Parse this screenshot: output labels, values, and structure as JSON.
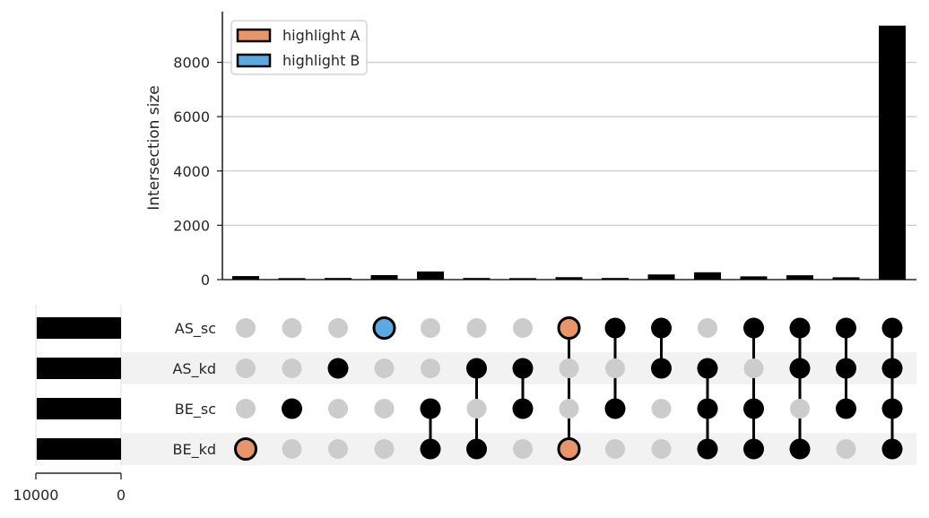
{
  "chart_data": {
    "type": "upset",
    "ylabel": "Intersection size",
    "yticks": [
      0,
      2000,
      4000,
      6000,
      8000
    ],
    "ylim": [
      0,
      9800
    ],
    "sets": [
      "AS_sc",
      "AS_kd",
      "BE_sc",
      "BE_kd"
    ],
    "set_size_axis": {
      "ticks": [
        10000,
        0
      ],
      "xlim": [
        10000,
        0
      ]
    },
    "set_sizes": [
      9900,
      9900,
      9900,
      9900
    ],
    "legend": {
      "position": "top-left",
      "items": [
        {
          "label": "highlight A",
          "color": "#e8956a"
        },
        {
          "label": "highlight B",
          "color": "#5aa9e0"
        }
      ]
    },
    "intersections": [
      {
        "members": [
          "BE_kd"
        ],
        "size": 130,
        "highlight": "A"
      },
      {
        "members": [
          "BE_sc"
        ],
        "size": 55,
        "highlight": null
      },
      {
        "members": [
          "AS_kd"
        ],
        "size": 60,
        "highlight": null
      },
      {
        "members": [
          "AS_sc"
        ],
        "size": 165,
        "highlight": "B"
      },
      {
        "members": [
          "BE_sc",
          "BE_kd"
        ],
        "size": 300,
        "highlight": null
      },
      {
        "members": [
          "AS_kd",
          "BE_kd"
        ],
        "size": 60,
        "highlight": null
      },
      {
        "members": [
          "AS_kd",
          "BE_sc"
        ],
        "size": 55,
        "highlight": null
      },
      {
        "members": [
          "AS_sc",
          "BE_kd"
        ],
        "size": 90,
        "highlight": "A"
      },
      {
        "members": [
          "AS_sc",
          "BE_sc"
        ],
        "size": 60,
        "highlight": null
      },
      {
        "members": [
          "AS_sc",
          "AS_kd"
        ],
        "size": 190,
        "highlight": null
      },
      {
        "members": [
          "AS_kd",
          "BE_sc",
          "BE_kd"
        ],
        "size": 270,
        "highlight": null
      },
      {
        "members": [
          "AS_sc",
          "BE_sc",
          "BE_kd"
        ],
        "size": 120,
        "highlight": null
      },
      {
        "members": [
          "AS_sc",
          "AS_kd",
          "BE_kd"
        ],
        "size": 160,
        "highlight": null
      },
      {
        "members": [
          "AS_sc",
          "AS_kd",
          "BE_sc"
        ],
        "size": 85,
        "highlight": null
      },
      {
        "members": [
          "AS_sc",
          "AS_kd",
          "BE_sc",
          "BE_kd"
        ],
        "size": 9350,
        "highlight": null
      }
    ],
    "colors": {
      "bar": "#000000",
      "active_dot": "#000000",
      "inactive_dot": "#cccccc",
      "grid": "#cccccc",
      "row_shade": "#f2f2f2"
    }
  }
}
